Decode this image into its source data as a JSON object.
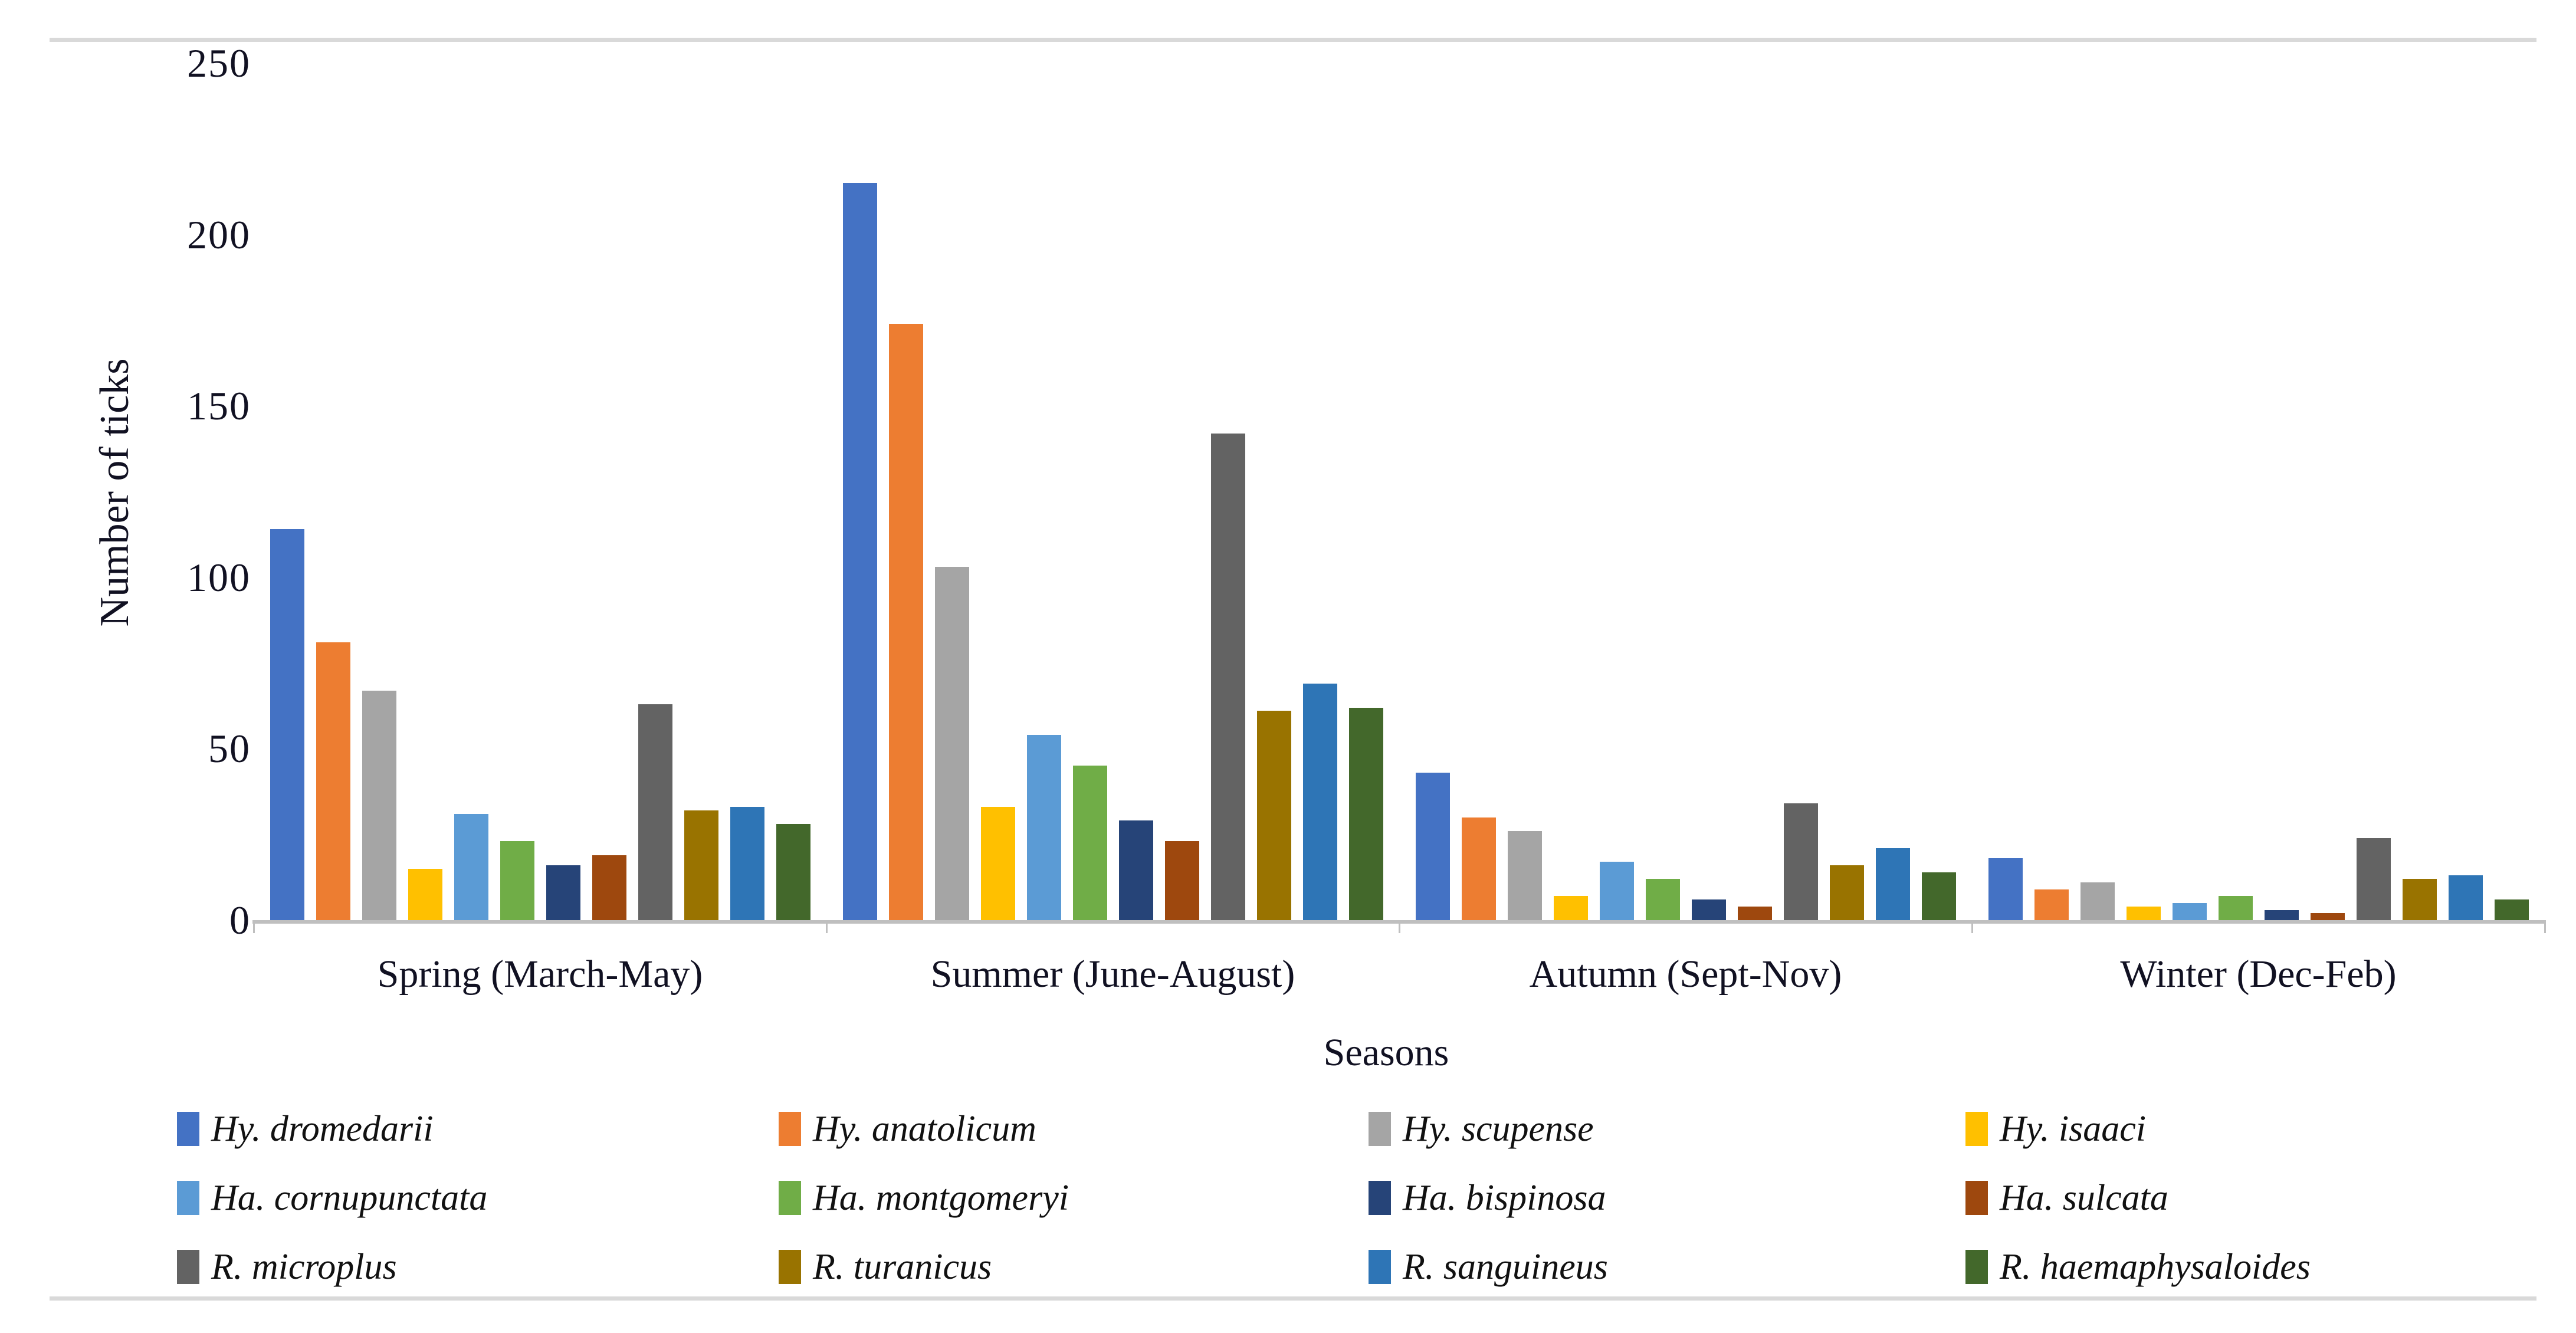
{
  "chart_data": {
    "type": "bar",
    "title": "",
    "xlabel": "Seasons",
    "ylabel": "Number of ticks",
    "ylim": [
      0,
      250
    ],
    "yticks": [
      0,
      50,
      100,
      150,
      200,
      250
    ],
    "grid": false,
    "legend_position": "bottom",
    "categories": [
      "Spring (March-May)",
      "Summer (June-August)",
      "Autumn (Sept-Nov)",
      "Winter (Dec-Feb)"
    ],
    "series": [
      {
        "name": "Hy. dromedarii",
        "color": "#4472C4",
        "values": [
          114,
          215,
          43,
          18
        ]
      },
      {
        "name": "Hy. anatolicum",
        "color": "#ED7D31",
        "values": [
          81,
          174,
          30,
          9
        ]
      },
      {
        "name": "Hy. scupense",
        "color": "#A5A5A5",
        "values": [
          67,
          103,
          26,
          11
        ]
      },
      {
        "name": "Hy. isaaci",
        "color": "#FFC000",
        "values": [
          15,
          33,
          7,
          4
        ]
      },
      {
        "name": "Ha. cornupunctata",
        "color": "#5B9BD5",
        "values": [
          31,
          54,
          17,
          5
        ]
      },
      {
        "name": "Ha. montgomeryi",
        "color": "#70AD47",
        "values": [
          23,
          45,
          12,
          7
        ]
      },
      {
        "name": "Ha. bispinosa",
        "color": "#264478",
        "values": [
          16,
          29,
          6,
          3
        ]
      },
      {
        "name": "Ha. sulcata",
        "color": "#9E480E",
        "values": [
          19,
          23,
          4,
          2
        ]
      },
      {
        "name": "R. microplus",
        "color": "#636363",
        "values": [
          63,
          142,
          34,
          24
        ]
      },
      {
        "name": "R. turanicus",
        "color": "#997300",
        "values": [
          32,
          61,
          16,
          12
        ]
      },
      {
        "name": "R. sanguineus",
        "color": "#2E75B6",
        "values": [
          33,
          69,
          21,
          13
        ]
      },
      {
        "name": "R. haemaphysaloides",
        "color": "#43682B",
        "values": [
          28,
          62,
          14,
          6
        ]
      }
    ]
  }
}
